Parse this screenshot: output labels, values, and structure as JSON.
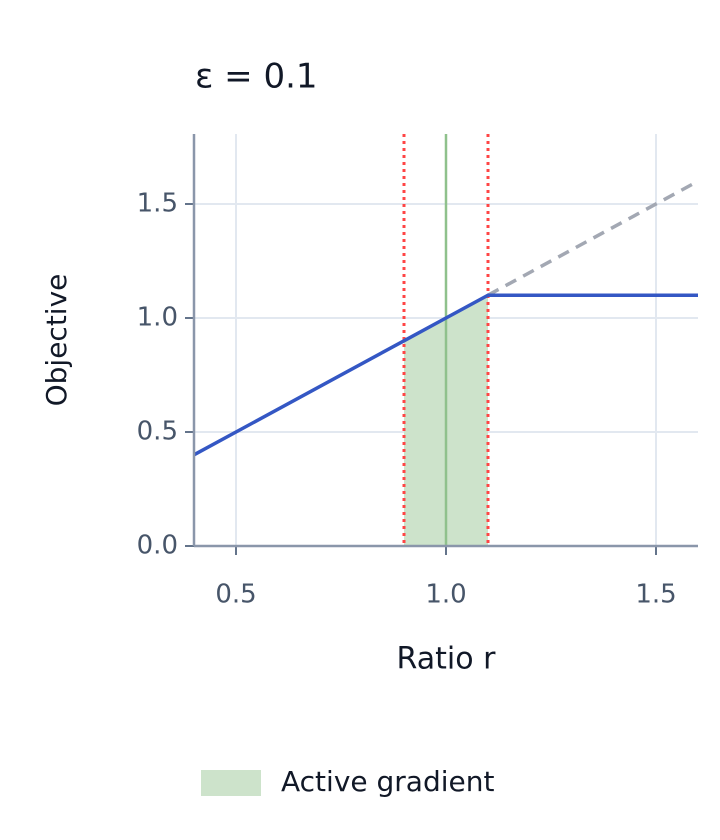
{
  "chart_data": {
    "type": "line",
    "title": "ε = 0.1",
    "xlabel": "Ratio r",
    "ylabel": "Objective",
    "x": [
      0.4,
      0.9,
      1.0,
      1.1,
      1.6
    ],
    "series": [
      {
        "color": "#a3a8b3",
        "dashed": true,
        "values": [
          null,
          null,
          null,
          1.1,
          1.6
        ]
      },
      {
        "color": "#3457c4",
        "dashed": false,
        "values": [
          0.4,
          0.9,
          1.0,
          1.1,
          1.1
        ]
      }
    ],
    "shaded_region": {
      "name": "Active gradient",
      "x": [
        0.9,
        1.1
      ],
      "color": "#cde3cb"
    },
    "vlines": [
      {
        "x": 0.9,
        "color": "#ff4545",
        "style": "dotted"
      },
      {
        "x": 1.0,
        "color": "#8fc18c",
        "style": "solid"
      },
      {
        "x": 1.1,
        "color": "#ff4545",
        "style": "dotted"
      }
    ],
    "xlim": [
      0.4,
      1.6
    ],
    "ylim": [
      0,
      1.8
    ],
    "xticks": [
      {
        "value": 0.5,
        "label": "0.5"
      },
      {
        "value": 1,
        "label": "1.0"
      },
      {
        "value": 1.5,
        "label": "1.5"
      }
    ],
    "yticks": [
      {
        "value": 0,
        "label": "0.0"
      },
      {
        "value": 0.5,
        "label": "0.5"
      },
      {
        "value": 1,
        "label": "1.0"
      },
      {
        "value": 1.5,
        "label": "1.5"
      }
    ],
    "grid": true
  }
}
